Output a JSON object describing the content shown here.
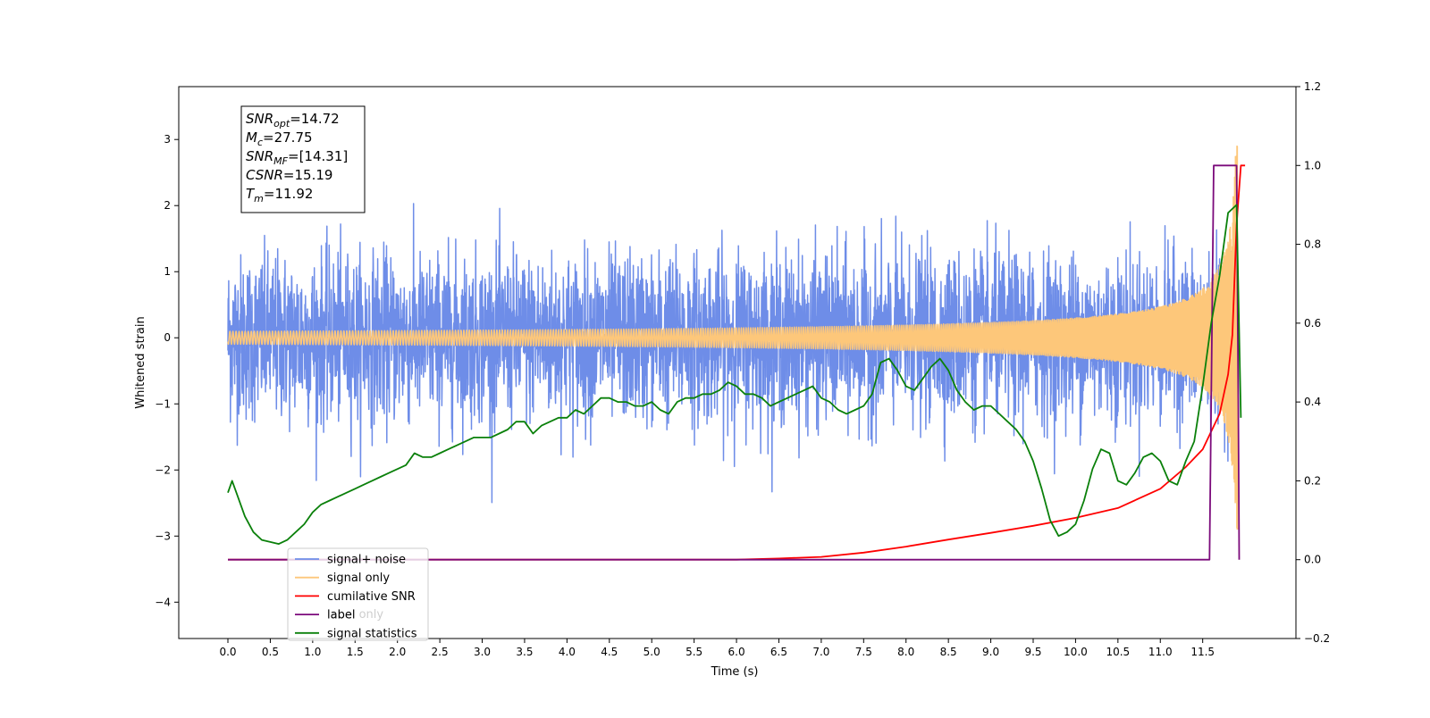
{
  "chart_data": {
    "type": "line",
    "xlabel": "Time (s)",
    "ylabel": "Whitened strain",
    "xlim": [
      -0.58,
      12.6
    ],
    "ylim": [
      -4.55,
      3.8
    ],
    "y2lim": [
      -0.2,
      1.2
    ],
    "x_ticks": [
      "0.0",
      "0.5",
      "1.0",
      "1.5",
      "2.0",
      "2.5",
      "3.0",
      "3.5",
      "4.0",
      "4.5",
      "5.0",
      "5.5",
      "6.0",
      "6.5",
      "7.0",
      "7.5",
      "8.0",
      "8.5",
      "9.0",
      "9.5",
      "10.0",
      "10.5",
      "11.0",
      "11.5"
    ],
    "y_ticks": [
      "3",
      "2",
      "1",
      "0",
      "−1",
      "−2",
      "−3",
      "−4"
    ],
    "y2_ticks": [
      "1.2",
      "1.0",
      "0.8",
      "0.6",
      "0.4",
      "0.2",
      "0.0",
      "−0.2"
    ],
    "annotation": {
      "lines": [
        {
          "var": "SNR",
          "sub": "opt",
          "value": "=14.72"
        },
        {
          "var": "M",
          "sub": "c",
          "value": "=27.75"
        },
        {
          "var": "SNR",
          "sub": "MF",
          "value": "=[14.31]"
        },
        {
          "var": "CSNR",
          "sub": "",
          "value": "=15.19"
        },
        {
          "var": "T",
          "sub": "m",
          "value": "=11.92"
        }
      ]
    },
    "legend": {
      "location": "lower-left",
      "entries": [
        {
          "label": "signal+ noise",
          "color": "#6e8de8"
        },
        {
          "label": "signal only",
          "color": "#fdc77a"
        },
        {
          "label": "cumilative SNR",
          "color": "#ff0000"
        },
        {
          "label": "label",
          "color": "#7b0a7b"
        },
        {
          "label": "signal statistics",
          "color": "#0a800a"
        }
      ]
    },
    "hidden_legend_entries": [
      "label only"
    ],
    "series": [
      {
        "name": "signal+ noise",
        "axis": "left",
        "color": "#6e8de8",
        "x_range": [
          0.0,
          11.92
        ],
        "noise_std": 0.62,
        "noise_peak": 3.4
      },
      {
        "name": "signal only",
        "axis": "left",
        "color": "#fdc77a",
        "x_range": [
          0.0,
          11.92
        ],
        "peak_amplitude": 2.9,
        "merger_time": 11.92
      },
      {
        "name": "cumilative SNR",
        "axis": "right",
        "color": "#ff0000",
        "x": [
          0.0,
          6.0,
          6.5,
          7.0,
          7.5,
          8.0,
          8.5,
          9.0,
          9.5,
          10.0,
          10.5,
          11.0,
          11.3,
          11.5,
          11.7,
          11.8,
          11.85,
          11.9,
          11.95,
          12.0
        ],
        "y": [
          0.0,
          0.0,
          0.003,
          0.007,
          0.018,
          0.033,
          0.051,
          0.068,
          0.086,
          0.106,
          0.131,
          0.18,
          0.235,
          0.28,
          0.37,
          0.47,
          0.57,
          0.85,
          1.0,
          1.0
        ]
      },
      {
        "name": "label",
        "axis": "right",
        "color": "#7b0a7b",
        "x": [
          0.0,
          11.58,
          11.63,
          11.9,
          11.92,
          11.93
        ],
        "y": [
          0.0,
          0.0,
          1.0,
          1.0,
          0.4,
          0.0
        ]
      },
      {
        "name": "signal statistics",
        "axis": "right",
        "color": "#0a800a",
        "x": [
          0.0,
          0.05,
          0.1,
          0.2,
          0.3,
          0.4,
          0.5,
          0.6,
          0.7,
          0.8,
          0.9,
          1.0,
          1.1,
          1.2,
          1.3,
          1.4,
          1.5,
          1.6,
          1.7,
          1.8,
          1.9,
          2.0,
          2.1,
          2.2,
          2.3,
          2.4,
          2.5,
          2.6,
          2.7,
          2.8,
          2.9,
          3.0,
          3.1,
          3.2,
          3.3,
          3.4,
          3.5,
          3.6,
          3.7,
          3.8,
          3.9,
          4.0,
          4.1,
          4.2,
          4.3,
          4.4,
          4.5,
          4.6,
          4.7,
          4.8,
          4.9,
          5.0,
          5.1,
          5.2,
          5.3,
          5.4,
          5.5,
          5.6,
          5.7,
          5.8,
          5.9,
          6.0,
          6.1,
          6.2,
          6.3,
          6.4,
          6.5,
          6.6,
          6.7,
          6.8,
          6.9,
          7.0,
          7.1,
          7.2,
          7.3,
          7.4,
          7.5,
          7.6,
          7.7,
          7.8,
          7.9,
          8.0,
          8.1,
          8.2,
          8.3,
          8.4,
          8.5,
          8.6,
          8.7,
          8.8,
          8.9,
          9.0,
          9.1,
          9.2,
          9.3,
          9.4,
          9.5,
          9.6,
          9.7,
          9.8,
          9.9,
          10.0,
          10.1,
          10.2,
          10.3,
          10.4,
          10.5,
          10.6,
          10.7,
          10.8,
          10.9,
          11.0,
          11.1,
          11.2,
          11.3,
          11.4,
          11.5,
          11.6,
          11.7,
          11.8,
          11.9,
          11.95
        ],
        "y": [
          0.17,
          0.2,
          0.17,
          0.11,
          0.07,
          0.05,
          0.045,
          0.04,
          0.05,
          0.07,
          0.09,
          0.12,
          0.14,
          0.15,
          0.16,
          0.17,
          0.18,
          0.19,
          0.2,
          0.21,
          0.22,
          0.23,
          0.24,
          0.27,
          0.26,
          0.26,
          0.27,
          0.28,
          0.29,
          0.3,
          0.31,
          0.31,
          0.31,
          0.32,
          0.33,
          0.35,
          0.35,
          0.32,
          0.34,
          0.35,
          0.36,
          0.36,
          0.38,
          0.37,
          0.39,
          0.41,
          0.41,
          0.4,
          0.4,
          0.39,
          0.39,
          0.4,
          0.38,
          0.37,
          0.4,
          0.41,
          0.41,
          0.42,
          0.42,
          0.43,
          0.45,
          0.44,
          0.42,
          0.42,
          0.41,
          0.39,
          0.4,
          0.41,
          0.42,
          0.43,
          0.44,
          0.41,
          0.4,
          0.38,
          0.37,
          0.38,
          0.39,
          0.42,
          0.5,
          0.51,
          0.48,
          0.44,
          0.43,
          0.46,
          0.49,
          0.51,
          0.48,
          0.43,
          0.4,
          0.38,
          0.39,
          0.39,
          0.37,
          0.35,
          0.33,
          0.3,
          0.25,
          0.18,
          0.1,
          0.06,
          0.07,
          0.09,
          0.15,
          0.23,
          0.28,
          0.27,
          0.2,
          0.19,
          0.22,
          0.26,
          0.27,
          0.25,
          0.2,
          0.19,
          0.25,
          0.3,
          0.44,
          0.6,
          0.72,
          0.88,
          0.9,
          0.36
        ]
      }
    ]
  }
}
